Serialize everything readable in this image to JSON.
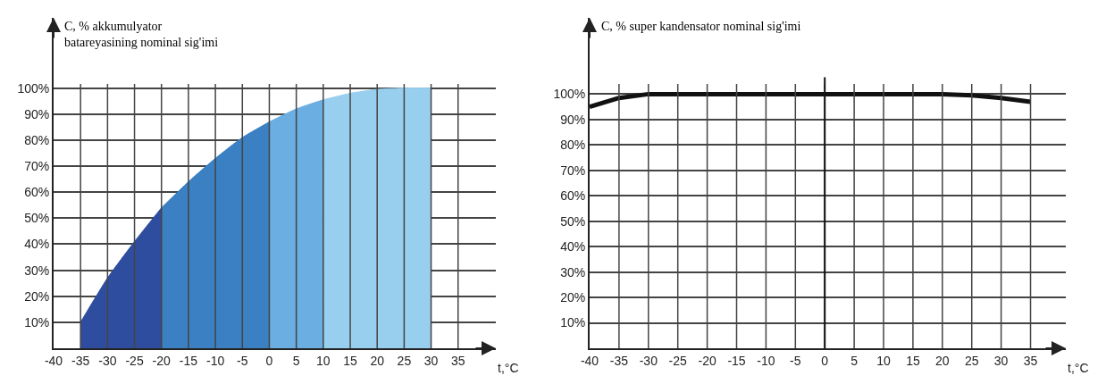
{
  "chart_data": [
    {
      "type": "area",
      "ylabel": "C, % akkumulyator batareyasining nominal sig'imi",
      "xlabel": "t,°C",
      "series": [
        {
          "color": "#2e4d9e",
          "x": [
            -35,
            -30,
            -25,
            -20
          ],
          "values": [
            10,
            27,
            41,
            54
          ]
        },
        {
          "color": "#3a80c2",
          "x": [
            -20,
            -15,
            -10,
            -5,
            0
          ],
          "values": [
            54,
            64,
            73,
            81,
            87
          ]
        },
        {
          "color": "#6aaee2",
          "x": [
            0,
            5,
            10
          ],
          "values": [
            87,
            92,
            95.5
          ]
        },
        {
          "color": "#98cfee",
          "x": [
            10,
            15,
            20,
            25,
            30
          ],
          "values": [
            95.5,
            98,
            99.5,
            100,
            100
          ]
        }
      ],
      "xlim": [
        -40,
        42
      ],
      "xticks": [
        -40,
        -35,
        -30,
        -25,
        -20,
        -15,
        -10,
        -5,
        0,
        5,
        10,
        15,
        20,
        25,
        30,
        35
      ],
      "ylim": [
        0,
        127
      ],
      "yticks": [
        {
          "value": 10,
          "label": "10%"
        },
        {
          "value": 20,
          "label": "20%"
        },
        {
          "value": 30,
          "label": "30%"
        },
        {
          "value": 40,
          "label": "40%"
        },
        {
          "value": 50,
          "label": "50%"
        },
        {
          "value": 60,
          "label": "60%"
        },
        {
          "value": 70,
          "label": "70%"
        },
        {
          "value": 80,
          "label": "80%"
        },
        {
          "value": 90,
          "label": "90%"
        },
        {
          "value": 100,
          "label": "100%"
        }
      ],
      "grid": true
    },
    {
      "type": "line",
      "ylabel": "C, % super kandensator nominal sig'imi",
      "xlabel": "t,°C",
      "x": [
        -40,
        -35,
        -30,
        -25,
        -20,
        -15,
        -10,
        -5,
        0,
        5,
        10,
        15,
        20,
        25,
        30,
        35
      ],
      "series": [
        {
          "color": "#111111",
          "values": [
            95,
            98.5,
            100,
            100,
            100,
            100,
            100,
            100,
            100,
            100,
            100,
            100,
            100,
            99.5,
            98.5,
            97
          ]
        }
      ],
      "xlim": [
        -40,
        41
      ],
      "xticks": [
        -40,
        -35,
        -30,
        -25,
        -20,
        -15,
        -10,
        -5,
        0,
        5,
        10,
        15,
        20,
        25,
        30,
        35
      ],
      "ylim": [
        0,
        130
      ],
      "yticks": [
        {
          "value": 10,
          "label": "10%"
        },
        {
          "value": 20,
          "label": "20%"
        },
        {
          "value": 30,
          "label": "30%"
        },
        {
          "value": 40,
          "label": "40%"
        },
        {
          "value": 50,
          "label": "50%"
        },
        {
          "value": 60,
          "label": "60%"
        },
        {
          "value": 70,
          "label": "70%"
        },
        {
          "value": 80,
          "label": "80%"
        },
        {
          "value": 90,
          "label": "90%"
        },
        {
          "value": 100,
          "label": "100%"
        }
      ],
      "ref_lines": [
        {
          "axis": "x",
          "value": 0,
          "color": "#111111"
        }
      ],
      "grid": true
    }
  ]
}
